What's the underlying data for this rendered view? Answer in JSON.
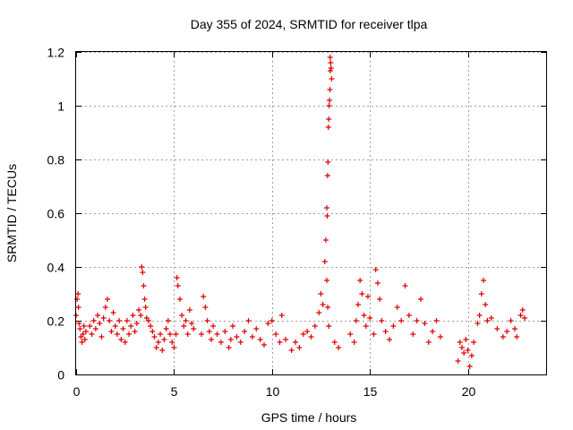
{
  "chart_data": {
    "type": "scatter",
    "title": "Day 355 of 2024, SRMTID for receiver tlpa",
    "xlabel": "GPS time / hours",
    "ylabel": "SRMTID / TECUs",
    "xlim": [
      0,
      24
    ],
    "ylim": [
      0,
      1.2
    ],
    "xticks": [
      0,
      5,
      10,
      15,
      20
    ],
    "yticks": [
      0,
      0.2,
      0.4,
      0.6,
      0.8,
      1.0,
      1.2
    ],
    "xtick_labels": [
      "0",
      "5",
      "10",
      "15",
      "20"
    ],
    "ytick_labels": [
      "0",
      "0.2",
      "0.4",
      "0.6",
      "0.8",
      "1",
      "1.2"
    ],
    "grid": true,
    "legend": "none",
    "marker": "plus",
    "color": "#e00000",
    "series": [
      {
        "name": "tlpa",
        "points": [
          [
            0.0,
            0.22
          ],
          [
            0.05,
            0.28
          ],
          [
            0.1,
            0.3
          ],
          [
            0.12,
            0.25
          ],
          [
            0.15,
            0.19
          ],
          [
            0.2,
            0.17
          ],
          [
            0.25,
            0.14
          ],
          [
            0.3,
            0.12
          ],
          [
            0.35,
            0.15
          ],
          [
            0.4,
            0.18
          ],
          [
            0.45,
            0.13
          ],
          [
            0.5,
            0.16
          ],
          [
            0.7,
            0.18
          ],
          [
            0.8,
            0.15
          ],
          [
            0.9,
            0.2
          ],
          [
            1.0,
            0.17
          ],
          [
            1.1,
            0.22
          ],
          [
            1.2,
            0.19
          ],
          [
            1.3,
            0.14
          ],
          [
            1.4,
            0.21
          ],
          [
            1.5,
            0.25
          ],
          [
            1.6,
            0.28
          ],
          [
            1.7,
            0.2
          ],
          [
            1.8,
            0.16
          ],
          [
            1.9,
            0.23
          ],
          [
            2.0,
            0.18
          ],
          [
            2.1,
            0.15
          ],
          [
            2.2,
            0.2
          ],
          [
            2.3,
            0.13
          ],
          [
            2.4,
            0.17
          ],
          [
            2.5,
            0.12
          ],
          [
            2.6,
            0.2
          ],
          [
            2.7,
            0.15
          ],
          [
            2.8,
            0.18
          ],
          [
            2.9,
            0.22
          ],
          [
            3.0,
            0.16
          ],
          [
            3.1,
            0.19
          ],
          [
            3.2,
            0.24
          ],
          [
            3.3,
            0.22
          ],
          [
            3.35,
            0.4
          ],
          [
            3.4,
            0.38
          ],
          [
            3.45,
            0.33
          ],
          [
            3.5,
            0.28
          ],
          [
            3.55,
            0.25
          ],
          [
            3.6,
            0.21
          ],
          [
            3.7,
            0.2
          ],
          [
            3.8,
            0.18
          ],
          [
            3.9,
            0.16
          ],
          [
            4.0,
            0.14
          ],
          [
            4.1,
            0.1
          ],
          [
            4.2,
            0.12
          ],
          [
            4.3,
            0.15
          ],
          [
            4.4,
            0.09
          ],
          [
            4.5,
            0.13
          ],
          [
            4.6,
            0.17
          ],
          [
            4.7,
            0.2
          ],
          [
            4.8,
            0.15
          ],
          [
            4.9,
            0.12
          ],
          [
            5.0,
            0.1
          ],
          [
            5.1,
            0.15
          ],
          [
            5.15,
            0.36
          ],
          [
            5.2,
            0.33
          ],
          [
            5.3,
            0.28
          ],
          [
            5.4,
            0.22
          ],
          [
            5.5,
            0.18
          ],
          [
            5.6,
            0.2
          ],
          [
            5.7,
            0.15
          ],
          [
            5.8,
            0.24
          ],
          [
            5.9,
            0.19
          ],
          [
            6.0,
            0.17
          ],
          [
            6.4,
            0.15
          ],
          [
            6.5,
            0.29
          ],
          [
            6.6,
            0.25
          ],
          [
            6.7,
            0.2
          ],
          [
            6.8,
            0.16
          ],
          [
            6.9,
            0.13
          ],
          [
            7.0,
            0.18
          ],
          [
            7.2,
            0.15
          ],
          [
            7.4,
            0.12
          ],
          [
            7.6,
            0.16
          ],
          [
            7.8,
            0.1
          ],
          [
            7.9,
            0.13
          ],
          [
            8.0,
            0.18
          ],
          [
            8.2,
            0.14
          ],
          [
            8.4,
            0.12
          ],
          [
            8.6,
            0.16
          ],
          [
            8.8,
            0.2
          ],
          [
            9.0,
            0.14
          ],
          [
            9.2,
            0.17
          ],
          [
            9.4,
            0.13
          ],
          [
            9.6,
            0.11
          ],
          [
            9.8,
            0.19
          ],
          [
            10.0,
            0.2
          ],
          [
            10.2,
            0.15
          ],
          [
            10.4,
            0.12
          ],
          [
            10.5,
            0.22
          ],
          [
            10.7,
            0.13
          ],
          [
            11.0,
            0.09
          ],
          [
            11.2,
            0.12
          ],
          [
            11.4,
            0.1
          ],
          [
            11.6,
            0.15
          ],
          [
            11.8,
            0.16
          ],
          [
            12.0,
            0.14
          ],
          [
            12.2,
            0.18
          ],
          [
            12.4,
            0.23
          ],
          [
            12.5,
            0.3
          ],
          [
            12.6,
            0.26
          ],
          [
            12.7,
            0.42
          ],
          [
            12.8,
            0.35
          ],
          [
            12.85,
            0.25
          ],
          [
            12.9,
            0.18
          ],
          [
            12.75,
            0.5
          ],
          [
            12.8,
            0.62
          ],
          [
            12.82,
            0.59
          ],
          [
            12.84,
            0.74
          ],
          [
            12.86,
            0.79
          ],
          [
            12.88,
            0.92
          ],
          [
            12.9,
            0.95
          ],
          [
            12.92,
            1.0
          ],
          [
            12.94,
            1.02
          ],
          [
            12.96,
            1.06
          ],
          [
            12.98,
            1.13
          ],
          [
            13.0,
            1.16
          ],
          [
            12.97,
            1.18
          ],
          [
            13.02,
            1.14
          ],
          [
            13.05,
            1.1
          ],
          [
            13.2,
            0.12
          ],
          [
            13.4,
            0.1
          ],
          [
            14.0,
            0.15
          ],
          [
            14.2,
            0.12
          ],
          [
            14.3,
            0.2
          ],
          [
            14.4,
            0.26
          ],
          [
            14.5,
            0.35
          ],
          [
            14.6,
            0.3
          ],
          [
            14.7,
            0.22
          ],
          [
            14.8,
            0.18
          ],
          [
            14.9,
            0.29
          ],
          [
            15.0,
            0.21
          ],
          [
            15.2,
            0.15
          ],
          [
            15.3,
            0.39
          ],
          [
            15.4,
            0.34
          ],
          [
            15.5,
            0.28
          ],
          [
            15.6,
            0.2
          ],
          [
            15.8,
            0.16
          ],
          [
            16.0,
            0.13
          ],
          [
            16.2,
            0.18
          ],
          [
            16.4,
            0.25
          ],
          [
            16.6,
            0.2
          ],
          [
            16.8,
            0.33
          ],
          [
            17.0,
            0.22
          ],
          [
            17.2,
            0.15
          ],
          [
            17.4,
            0.2
          ],
          [
            17.6,
            0.28
          ],
          [
            17.8,
            0.19
          ],
          [
            18.0,
            0.12
          ],
          [
            18.2,
            0.16
          ],
          [
            18.4,
            0.2
          ],
          [
            18.6,
            0.14
          ],
          [
            19.5,
            0.05
          ],
          [
            19.6,
            0.12
          ],
          [
            19.7,
            0.1
          ],
          [
            19.8,
            0.08
          ],
          [
            19.9,
            0.13
          ],
          [
            20.0,
            0.09
          ],
          [
            20.1,
            0.03
          ],
          [
            20.2,
            0.07
          ],
          [
            20.3,
            0.12
          ],
          [
            20.5,
            0.19
          ],
          [
            20.6,
            0.22
          ],
          [
            20.7,
            0.3
          ],
          [
            20.8,
            0.35
          ],
          [
            20.9,
            0.26
          ],
          [
            21.0,
            0.2
          ],
          [
            21.2,
            0.21
          ],
          [
            21.5,
            0.17
          ],
          [
            21.8,
            0.14
          ],
          [
            22.0,
            0.16
          ],
          [
            22.2,
            0.2
          ],
          [
            22.4,
            0.17
          ],
          [
            22.5,
            0.14
          ],
          [
            22.7,
            0.22
          ],
          [
            22.8,
            0.24
          ],
          [
            22.9,
            0.21
          ]
        ]
      }
    ]
  }
}
